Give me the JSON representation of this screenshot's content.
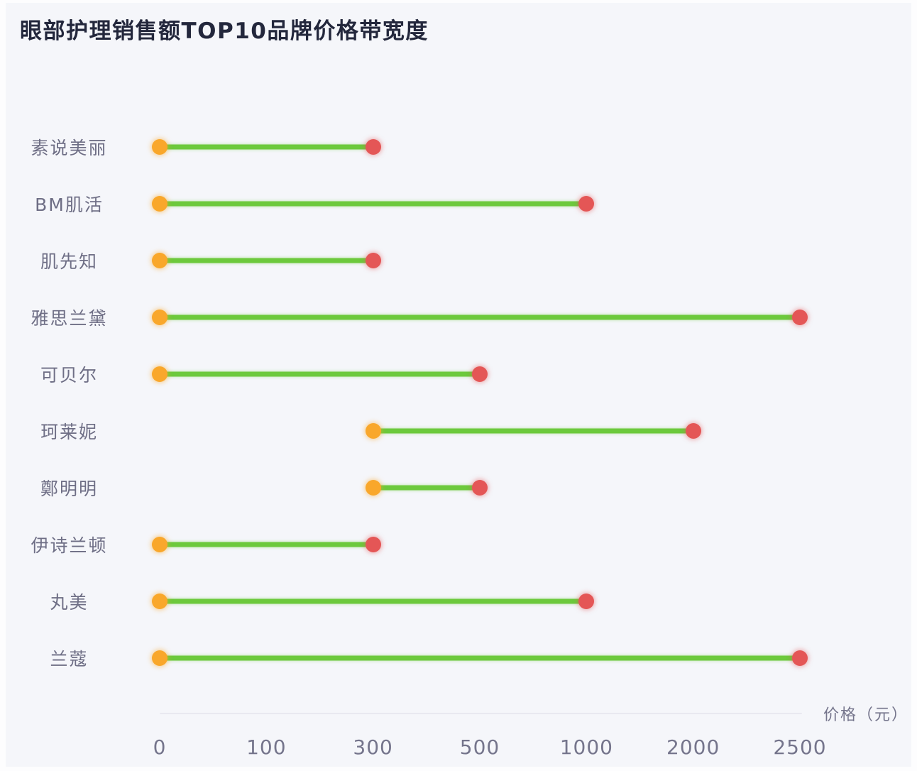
{
  "page": {
    "title": "眼部护理销售额TOP10品牌价格带宽度"
  },
  "chart_data": {
    "type": "dumbbell",
    "title": "眼部护理销售额TOP10品牌价格带宽度",
    "xlabel": "价格（元）",
    "ylabel": "",
    "axis_scale": "ordinal-even-spacing",
    "x_ticks": [
      0,
      100,
      300,
      500,
      1000,
      2000,
      2500
    ],
    "grid": false,
    "legend": "none",
    "categories": [
      "素说美丽",
      "BM肌活",
      "肌先知",
      "雅思兰黛",
      "可贝尔",
      "珂莱妮",
      "鄭明明",
      "伊诗兰顿",
      "丸美",
      "兰蔻"
    ],
    "rows": [
      {
        "brand": "素说美丽",
        "min": 0,
        "max": 300
      },
      {
        "brand": "BM肌活",
        "min": 0,
        "max": 1000
      },
      {
        "brand": "肌先知",
        "min": 0,
        "max": 300
      },
      {
        "brand": "雅思兰黛",
        "min": 0,
        "max": 2500
      },
      {
        "brand": "可贝尔",
        "min": 0,
        "max": 500
      },
      {
        "brand": "珂莱妮",
        "min": 300,
        "max": 2000
      },
      {
        "brand": "鄭明明",
        "min": 300,
        "max": 500
      },
      {
        "brand": "伊诗兰顿",
        "min": 0,
        "max": 300
      },
      {
        "brand": "丸美",
        "min": 0,
        "max": 1000
      },
      {
        "brand": "兰蔻",
        "min": 0,
        "max": 2500
      }
    ],
    "colors": {
      "background": "#F5F6FA",
      "title_text": "#23273C",
      "brand_label": "#6E6E85",
      "tick_label": "#75758C",
      "axis_line": "#E9E9F0",
      "min_dot": "#F9A72B",
      "max_dot": "#E45656",
      "band_line": "#6CC93C"
    }
  }
}
